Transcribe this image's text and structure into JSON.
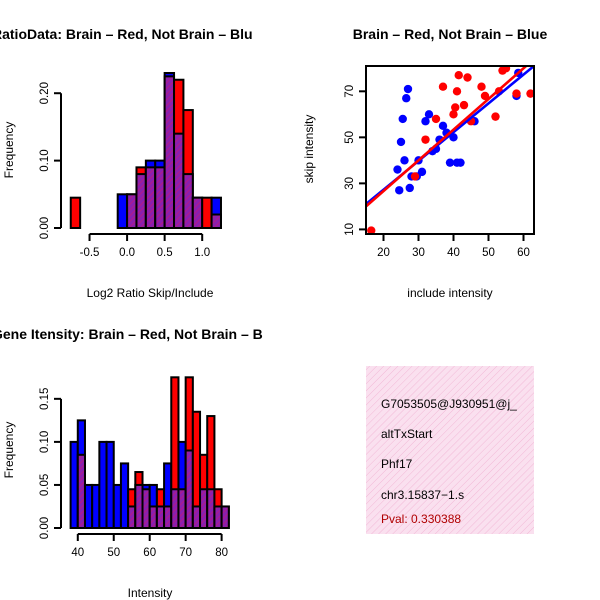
{
  "colors": {
    "red": "#ff0000",
    "blue": "#0000ff",
    "overlap": "#8b1fae",
    "info_bg": "#fae0ef",
    "pval": "#b00000"
  },
  "chart_data": [
    {
      "type": "bar",
      "title": "RatioData: Brain – Red, Not Brain – Blu",
      "xlabel": "Log2 Ratio Skip/Include",
      "ylabel": "Frequency",
      "xlim": [
        -0.8,
        1.45
      ],
      "ylim": [
        0,
        0.23
      ],
      "xticks": [
        "-0.5",
        "0.0",
        "0.5",
        "1.0"
      ],
      "yticks": [
        "0.00",
        "0.10",
        "0.20"
      ],
      "bin_edges": [
        -0.75,
        -0.625,
        -0.5,
        -0.375,
        -0.25,
        -0.125,
        0.0,
        0.125,
        0.25,
        0.375,
        0.5,
        0.625,
        0.75,
        0.875,
        1.0,
        1.125,
        1.25,
        1.375
      ],
      "series": [
        {
          "name": "Brain",
          "color": "red",
          "values": [
            0.045,
            0,
            0,
            0,
            0,
            0,
            0.05,
            0.09,
            0.09,
            0.09,
            0.225,
            0.22,
            0.175,
            0.045,
            0.045,
            0.02,
            0,
            0
          ]
        },
        {
          "name": "Not Brain",
          "color": "blue",
          "values": [
            0,
            0,
            0,
            0,
            0,
            0.05,
            0.05,
            0.08,
            0.1,
            0.1,
            0.23,
            0.14,
            0.08,
            0.045,
            0,
            0.045,
            0,
            0.05
          ]
        }
      ]
    },
    {
      "type": "scatter",
      "title": "Brain – Red, Not Brain – Blue",
      "xlabel": "include intensity",
      "ylabel": "skip intensity",
      "xlim": [
        15,
        63
      ],
      "ylim": [
        8,
        81
      ],
      "xticks": [
        "20",
        "30",
        "40",
        "50",
        "60"
      ],
      "yticks": [
        "10",
        "30",
        "50",
        "70"
      ],
      "series": [
        {
          "name": "Brain",
          "color": "red",
          "x": [
            16.5,
            29,
            32,
            35,
            37,
            40,
            40.5,
            41,
            41.5,
            43,
            44,
            45,
            48,
            49,
            52,
            53,
            54,
            55,
            58,
            62
          ],
          "y": [
            9.5,
            33,
            49,
            58,
            72,
            60,
            63,
            70,
            77,
            64,
            76,
            57,
            72,
            68,
            59,
            70,
            79,
            80,
            69,
            69
          ],
          "fit": [
            [
              15,
              20
            ],
            [
              63,
              84
            ]
          ]
        },
        {
          "name": "Not Brain",
          "color": "blue",
          "x": [
            24,
            24.5,
            25,
            25.5,
            26,
            26.5,
            27,
            27.5,
            28,
            29.5,
            30,
            31,
            32,
            33,
            34,
            35,
            36,
            37,
            38,
            39,
            40,
            41,
            42,
            46,
            58,
            58.5
          ],
          "y": [
            36,
            27,
            48,
            58,
            40,
            67,
            71,
            28,
            33,
            33,
            40,
            35,
            57,
            60,
            44,
            45,
            49,
            55,
            52,
            39,
            50,
            39,
            39,
            57,
            68,
            78
          ],
          "fit": [
            [
              15,
              21
            ],
            [
              63,
              81
            ]
          ]
        }
      ]
    },
    {
      "type": "bar",
      "title": "Gene Itensity: Brain – Red, Not Brain – B",
      "xlabel": "Intensity",
      "ylabel": "Frequency",
      "xlim": [
        37,
        84
      ],
      "ylim": [
        0,
        0.18
      ],
      "xticks": [
        "40",
        "50",
        "60",
        "70",
        "80"
      ],
      "yticks": [
        "0.00",
        "0.05",
        "0.10",
        "0.15"
      ],
      "bin_edges": [
        38,
        40,
        42,
        44,
        46,
        48,
        50,
        52,
        54,
        56,
        58,
        60,
        62,
        64,
        66,
        68,
        70,
        72,
        74,
        76,
        78,
        80,
        82
      ],
      "series": [
        {
          "name": "Brain",
          "color": "red",
          "values": [
            0,
            0.085,
            0,
            0,
            0,
            0,
            0,
            0,
            0.045,
            0.065,
            0.045,
            0.025,
            0.045,
            0.025,
            0.175,
            0.045,
            0.175,
            0.135,
            0.085,
            0.13,
            0.045,
            0.025
          ]
        },
        {
          "name": "Not Brain",
          "color": "blue",
          "values": [
            0.1,
            0.125,
            0.05,
            0.05,
            0.1,
            0.1,
            0.05,
            0.075,
            0.025,
            0.05,
            0.05,
            0.05,
            0.025,
            0.075,
            0.045,
            0.1,
            0.09,
            0.025,
            0.045,
            0.045,
            0.025,
            0.025
          ]
        }
      ]
    }
  ],
  "info_box": {
    "line1": "G7053505@J930951@j_",
    "line2": "altTxStart",
    "line3": "Phf17",
    "line4": "chr3.15837−1.s",
    "pval": "Pval: 0.330388"
  }
}
